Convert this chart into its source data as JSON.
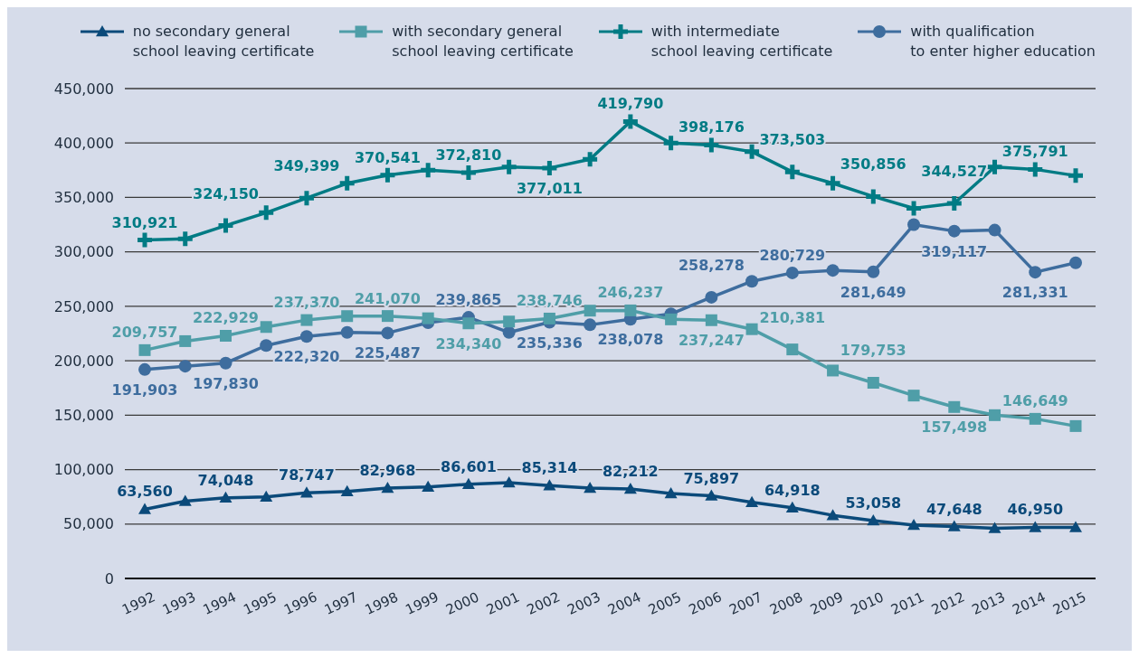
{
  "chart_data": {
    "type": "line",
    "categories": [
      "1992",
      "1993",
      "1994",
      "1995",
      "1996",
      "1997",
      "1998",
      "1999",
      "2000",
      "2001",
      "2002",
      "2003",
      "2004",
      "2005",
      "2006",
      "2007",
      "2008",
      "2009",
      "2010",
      "2011",
      "2012",
      "2013",
      "2014",
      "2015"
    ],
    "series": [
      {
        "name": "no secondary general\nschool leaving certificate",
        "color": "#0b4a7a",
        "marker": "triangle",
        "values": [
          63560,
          71000,
          74048,
          75000,
          78747,
          80000,
          82968,
          84000,
          86601,
          88000,
          85314,
          83000,
          82212,
          78000,
          75897,
          70000,
          64918,
          58000,
          53058,
          49000,
          47648,
          46000,
          46950,
          47000
        ],
        "value_labels": [
          "63,560",
          null,
          "74,048",
          null,
          "78,747",
          null,
          "82,968",
          null,
          "86,601",
          null,
          "85,314",
          null,
          "82,212",
          null,
          "75,897",
          null,
          "64,918",
          null,
          "53,058",
          null,
          "47,648",
          null,
          "46,950",
          null
        ]
      },
      {
        "name": "with secondary general\nschool leaving certificate",
        "color": "#4f9ea8",
        "marker": "square",
        "values": [
          209757,
          218000,
          222929,
          231000,
          237370,
          241000,
          241070,
          239000,
          234340,
          236000,
          238746,
          246000,
          246237,
          238000,
          237247,
          229000,
          210381,
          191000,
          179753,
          168000,
          157498,
          150000,
          146649,
          140000
        ],
        "value_labels": [
          "209,757",
          null,
          "222,929",
          null,
          "237,370",
          null,
          "241,070",
          null,
          "234,340",
          null,
          "238,746",
          null,
          "246,237",
          null,
          "237,247",
          null,
          "210,381",
          null,
          "179,753",
          null,
          "157,498",
          null,
          "146,649",
          null
        ]
      },
      {
        "name": "with intermediate\nschool leaving certificate",
        "color": "#007b84",
        "marker": "cross",
        "values": [
          310921,
          312000,
          324150,
          336000,
          349399,
          363000,
          370541,
          375000,
          372810,
          378000,
          377011,
          385000,
          419790,
          400000,
          398176,
          392000,
          373503,
          363000,
          350856,
          340000,
          344527,
          378000,
          375791,
          370000
        ],
        "value_labels": [
          "310,921",
          null,
          "324,150",
          null,
          "349,399",
          null,
          "370,541",
          null,
          "372,810",
          null,
          "377,011",
          null,
          "419,790",
          null,
          "398,176",
          null,
          "373,503",
          null,
          "350,856",
          null,
          "344,527",
          null,
          "375,791",
          null
        ]
      },
      {
        "name": "with qualification\nto enter higher education",
        "color": "#3e6d9e",
        "marker": "circle",
        "values": [
          191903,
          195000,
          197830,
          214000,
          222320,
          226000,
          225487,
          235000,
          239865,
          226000,
          235336,
          233000,
          238078,
          243000,
          258278,
          273000,
          280729,
          283000,
          281649,
          325000,
          319117,
          320000,
          281331,
          290000
        ],
        "value_labels": [
          "191,903",
          null,
          "197,830",
          null,
          "222,320",
          null,
          "225,487",
          null,
          "239,865",
          null,
          "235,336",
          null,
          "238,078",
          null,
          "258,278",
          null,
          "280,729",
          null,
          "281,649",
          null,
          "319,117",
          null,
          "281,331",
          null
        ]
      }
    ],
    "ylim": [
      0,
      450000
    ],
    "yticks": [
      {
        "value": 0,
        "label": "0"
      },
      {
        "value": 50000,
        "label": "50,000"
      },
      {
        "value": 100000,
        "label": "100,000"
      },
      {
        "value": 150000,
        "label": "150,000"
      },
      {
        "value": 200000,
        "label": "200,000"
      },
      {
        "value": 250000,
        "label": "250,000"
      },
      {
        "value": 300000,
        "label": "300,000"
      },
      {
        "value": 350000,
        "label": "350,000"
      },
      {
        "value": 400000,
        "label": "400,000"
      },
      {
        "value": 450000,
        "label": "450,000"
      }
    ],
    "grid": "y",
    "legend": "top",
    "line_style": "solid"
  }
}
